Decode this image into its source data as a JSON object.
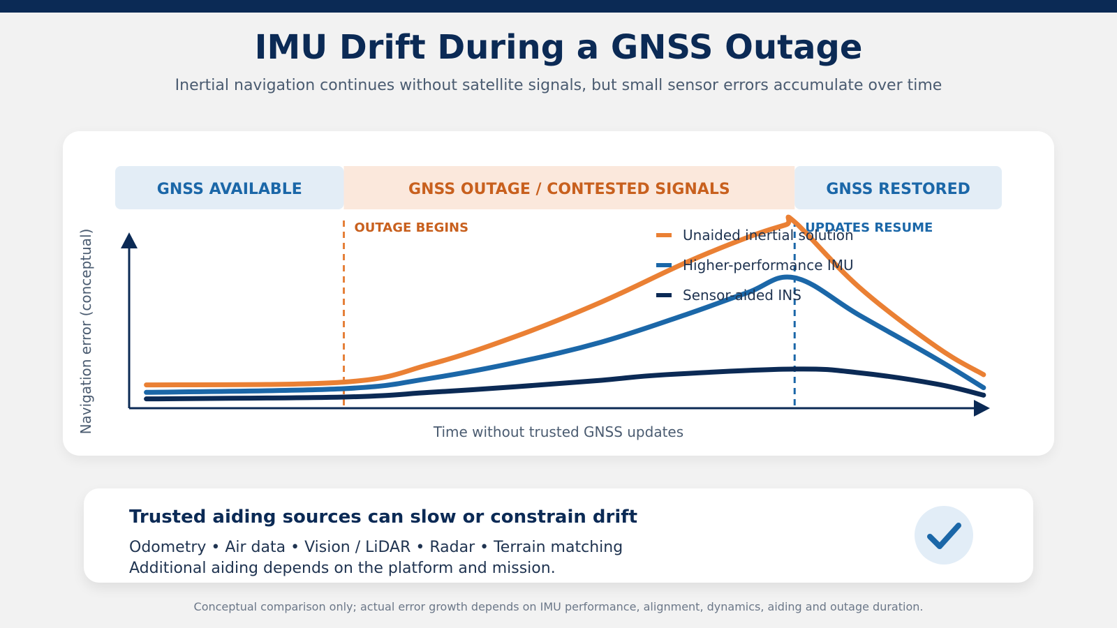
{
  "header": {
    "title": "IMU Drift During a GNSS Outage",
    "subtitle": "Inertial navigation continues without satellite signals, but small sensor errors accumulate over time"
  },
  "chart_data": {
    "type": "line",
    "xlabel": "Time without trusted GNSS updates",
    "ylabel": "Navigation error (conceptual)",
    "phases": [
      {
        "label": "GNSS AVAILABLE",
        "text_color": "#1b67a8",
        "fill": "#e3edf6"
      },
      {
        "label": "GNSS OUTAGE / CONTESTED SIGNALS",
        "text_color": "#c8601e",
        "fill": "#fbe8dc"
      },
      {
        "label": "GNSS RESTORED",
        "text_color": "#1b67a8",
        "fill": "#e3edf6"
      }
    ],
    "markers": [
      {
        "label": "OUTAGE BEGINS",
        "x": 0.25,
        "color": "#e5803a",
        "text_color": "#c8601e"
      },
      {
        "label": "UPDATES RESUME",
        "x": 0.775,
        "color": "#1b67a8",
        "text_color": "#1b67a8"
      }
    ],
    "xlim": [
      0,
      1
    ],
    "ylim": [
      0,
      1
    ],
    "series": [
      {
        "name": "Unaided inertial solution",
        "color": "#ea8034",
        "x": [
          0.02,
          0.25,
          0.35,
          0.45,
          0.55,
          0.65,
          0.725,
          0.765,
          0.775,
          0.85,
          0.94,
          0.995
        ],
        "y": [
          0.125,
          0.14,
          0.235,
          0.385,
          0.57,
          0.785,
          0.925,
          0.985,
          1.0,
          0.65,
          0.33,
          0.18
        ]
      },
      {
        "name": "Higher-performance IMU",
        "color": "#1b67a8",
        "x": [
          0.02,
          0.25,
          0.35,
          0.45,
          0.55,
          0.65,
          0.72,
          0.775,
          0.85,
          0.94,
          0.995
        ],
        "y": [
          0.085,
          0.105,
          0.16,
          0.245,
          0.355,
          0.505,
          0.62,
          0.7,
          0.5,
          0.265,
          0.11
        ]
      },
      {
        "name": "Sensor-aided INS",
        "color": "#0b2a55",
        "x": [
          0.02,
          0.25,
          0.35,
          0.45,
          0.55,
          0.625,
          0.775,
          0.85,
          0.94,
          0.995
        ],
        "y": [
          0.05,
          0.06,
          0.085,
          0.115,
          0.15,
          0.18,
          0.21,
          0.19,
          0.13,
          0.07
        ]
      }
    ]
  },
  "info": {
    "title": "Trusted aiding sources can slow or constrain drift",
    "line1": "Odometry • Air data • Vision / LiDAR • Radar • Terrain matching",
    "line2": "Additional aiding depends on the platform and mission.",
    "icon": "checkmark-icon"
  },
  "footnote": "Conceptual comparison only; actual error growth depends on IMU performance, alignment, dynamics, aiding and outage duration."
}
